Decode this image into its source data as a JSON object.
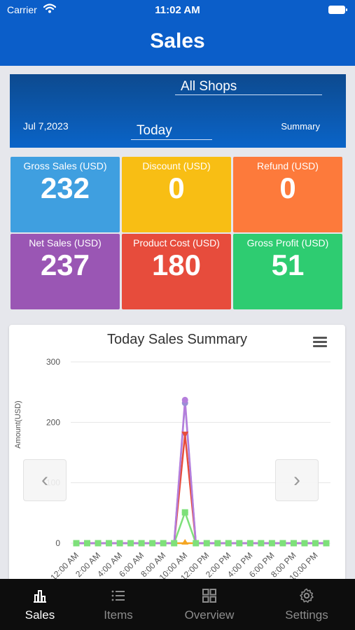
{
  "status_bar": {
    "carrier": "Carrier",
    "time": "11:02 AM"
  },
  "header": {
    "title": "Sales"
  },
  "filters": {
    "shop": "All Shops",
    "date": "Jul 7,2023",
    "period": "Today",
    "summary_label": "Summary"
  },
  "tiles": [
    {
      "label": "Gross Sales (USD)",
      "value": "232",
      "color": "#3f9fe0"
    },
    {
      "label": "Discount (USD)",
      "value": "0",
      "color": "#f8be14"
    },
    {
      "label": "Refund (USD)",
      "value": "0",
      "color": "#fd7a3b"
    },
    {
      "label": "Net Sales (USD)",
      "value": "237",
      "color": "#9a56b4"
    },
    {
      "label": "Product Cost (USD)",
      "value": "180",
      "color": "#e74c3c"
    },
    {
      "label": "Gross Profit (USD)",
      "value": "51",
      "color": "#2ecc71"
    }
  ],
  "chart": {
    "title": "Today Sales Summary",
    "prev_label": "‹",
    "next_label": "›"
  },
  "chart_data": {
    "type": "line",
    "title": "Today Sales Summary",
    "ylabel": "Amount(USD)",
    "ylim": [
      0,
      300
    ],
    "yticks": [
      0,
      100,
      200,
      300
    ],
    "x": [
      "12:00 AM",
      "1:00 AM",
      "2:00 AM",
      "3:00 AM",
      "4:00 AM",
      "5:00 AM",
      "6:00 AM",
      "7:00 AM",
      "8:00 AM",
      "9:00 AM",
      "10:00 AM",
      "11:00 AM",
      "12:00 PM",
      "1:00 PM",
      "2:00 PM",
      "3:00 PM",
      "4:00 PM",
      "5:00 PM",
      "6:00 PM",
      "7:00 PM",
      "8:00 PM",
      "9:00 PM",
      "10:00 PM",
      "11:00 PM"
    ],
    "x_tick_labels": [
      "12:00 AM",
      "",
      "2:00 AM",
      "",
      "4:00 AM",
      "",
      "6:00 AM",
      "",
      "8:00 AM",
      "",
      "10:00 AM",
      "",
      "12:00 PM",
      "",
      "2:00 PM",
      "",
      "4:00 PM",
      "",
      "6:00 PM",
      "",
      "8:00 PM",
      "",
      "10:00 PM",
      ""
    ],
    "grid": true,
    "legend": "none",
    "series": [
      {
        "color": "#9b8fd6",
        "values": [
          0,
          0,
          0,
          0,
          0,
          0,
          0,
          0,
          0,
          0,
          232,
          0,
          0,
          0,
          0,
          0,
          0,
          0,
          0,
          0,
          0,
          0,
          0,
          0
        ]
      },
      {
        "color": "#b57edc",
        "values": [
          0,
          0,
          0,
          0,
          0,
          0,
          0,
          0,
          0,
          0,
          237,
          0,
          0,
          0,
          0,
          0,
          0,
          0,
          0,
          0,
          0,
          0,
          0,
          0
        ]
      },
      {
        "color": "#e74c3c",
        "values": [
          0,
          0,
          0,
          0,
          0,
          0,
          0,
          0,
          0,
          0,
          180,
          0,
          0,
          0,
          0,
          0,
          0,
          0,
          0,
          0,
          0,
          0,
          0,
          0
        ]
      },
      {
        "color": "#7ee07a",
        "values": [
          0,
          0,
          0,
          0,
          0,
          0,
          0,
          0,
          0,
          0,
          51,
          0,
          0,
          0,
          0,
          0,
          0,
          0,
          0,
          0,
          0,
          0,
          0,
          0
        ]
      },
      {
        "color": "#f5a623",
        "values": [
          0,
          0,
          0,
          0,
          0,
          0,
          0,
          0,
          0,
          0,
          0,
          0,
          0,
          0,
          0,
          0,
          0,
          0,
          0,
          0,
          0,
          0,
          0,
          0
        ]
      }
    ]
  },
  "tabs": [
    {
      "label": "Sales",
      "icon": "bar-chart-icon",
      "active": true
    },
    {
      "label": "Items",
      "icon": "list-icon",
      "active": false
    },
    {
      "label": "Overview",
      "icon": "grid-icon",
      "active": false
    },
    {
      "label": "Settings",
      "icon": "gear-icon",
      "active": false
    }
  ]
}
